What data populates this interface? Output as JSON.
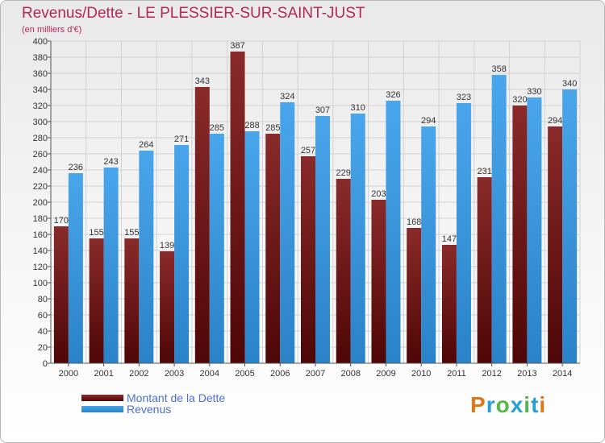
{
  "header": {
    "title": "Revenus/Dette - LE PLESSIER-SUR-SAINT-JUST",
    "subtitle": "(en milliers d'€)"
  },
  "legend": {
    "items": [
      {
        "label": "Montant de la Dette",
        "color": "#7a1f1f"
      },
      {
        "label": "Revenus",
        "color": "#3a9ae0"
      }
    ]
  },
  "logo": {
    "text": "Proxiti",
    "colors": [
      "#e0761a",
      "#2a9fd6",
      "#56b848",
      "#2a9fd6",
      "#56b848",
      "#2a9fd6",
      "#e0761a"
    ]
  },
  "chart_data": {
    "type": "bar",
    "title": "Revenus/Dette - LE PLESSIER-SUR-SAINT-JUST",
    "subtitle": "(en milliers d'€)",
    "categories": [
      "2000",
      "2001",
      "2002",
      "2003",
      "2004",
      "2005",
      "2006",
      "2007",
      "2008",
      "2009",
      "2010",
      "2011",
      "2012",
      "2013",
      "2014"
    ],
    "series": [
      {
        "name": "Montant de la Dette",
        "color": "#7a1f1f",
        "values": [
          170,
          155,
          155,
          139,
          343,
          387,
          285,
          257,
          229,
          203,
          168,
          147,
          231,
          320,
          294
        ]
      },
      {
        "name": "Revenus",
        "color": "#3a9ae0",
        "values": [
          236,
          243,
          264,
          271,
          285,
          288,
          324,
          307,
          310,
          326,
          294,
          323,
          358,
          330,
          340
        ]
      }
    ],
    "ylim": [
      0,
      400
    ],
    "ytick_step": 20,
    "grid": true,
    "legend_position": "bottom-left"
  }
}
